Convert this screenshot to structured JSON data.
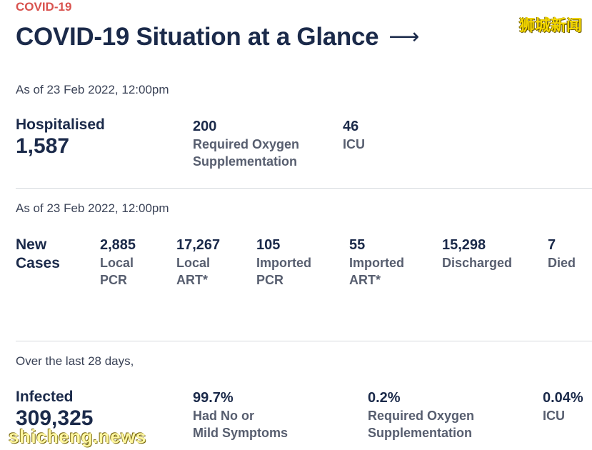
{
  "header": {
    "kicker": "COVID-19",
    "title": "COVID-19 Situation at a Glance",
    "arrow": "⟶"
  },
  "watermarks": {
    "top": "狮城新闻",
    "bottom": "shicheng.news"
  },
  "hospitalised": {
    "as_of": "As of 23 Feb 2022, 12:00pm",
    "label": "Hospitalised",
    "value": "1,587",
    "stats": [
      {
        "value": "200",
        "label_line1": "Required Oxygen",
        "label_line2": "Supplementation"
      },
      {
        "value": "46",
        "label_line1": "ICU",
        "label_line2": ""
      }
    ]
  },
  "new_cases": {
    "as_of": "As of 23 Feb 2022, 12:00pm",
    "label_line1": "New",
    "label_line2": "Cases",
    "stats": [
      {
        "value": "2,885",
        "label_line1": "Local",
        "label_line2": "PCR"
      },
      {
        "value": "17,267",
        "label_line1": "Local",
        "label_line2": "ART*"
      },
      {
        "value": "105",
        "label_line1": "Imported",
        "label_line2": "PCR"
      },
      {
        "value": "55",
        "label_line1": "Imported",
        "label_line2": "ART*"
      },
      {
        "value": "15,298",
        "label_line1": "Discharged",
        "label_line2": ""
      },
      {
        "value": "7",
        "label_line1": "Died",
        "label_line2": ""
      }
    ]
  },
  "last_28_days": {
    "as_of": "Over the last 28 days,",
    "label": "Infected",
    "value": "309,325",
    "stats": [
      {
        "value": "99.7%",
        "label_line1": "Had No or",
        "label_line2": "Mild Symptoms"
      },
      {
        "value": "0.2%",
        "label_line1": "Required Oxygen",
        "label_line2": "Supplementation"
      },
      {
        "value": "0.04%",
        "label_line1": "ICU",
        "label_line2": ""
      }
    ]
  }
}
